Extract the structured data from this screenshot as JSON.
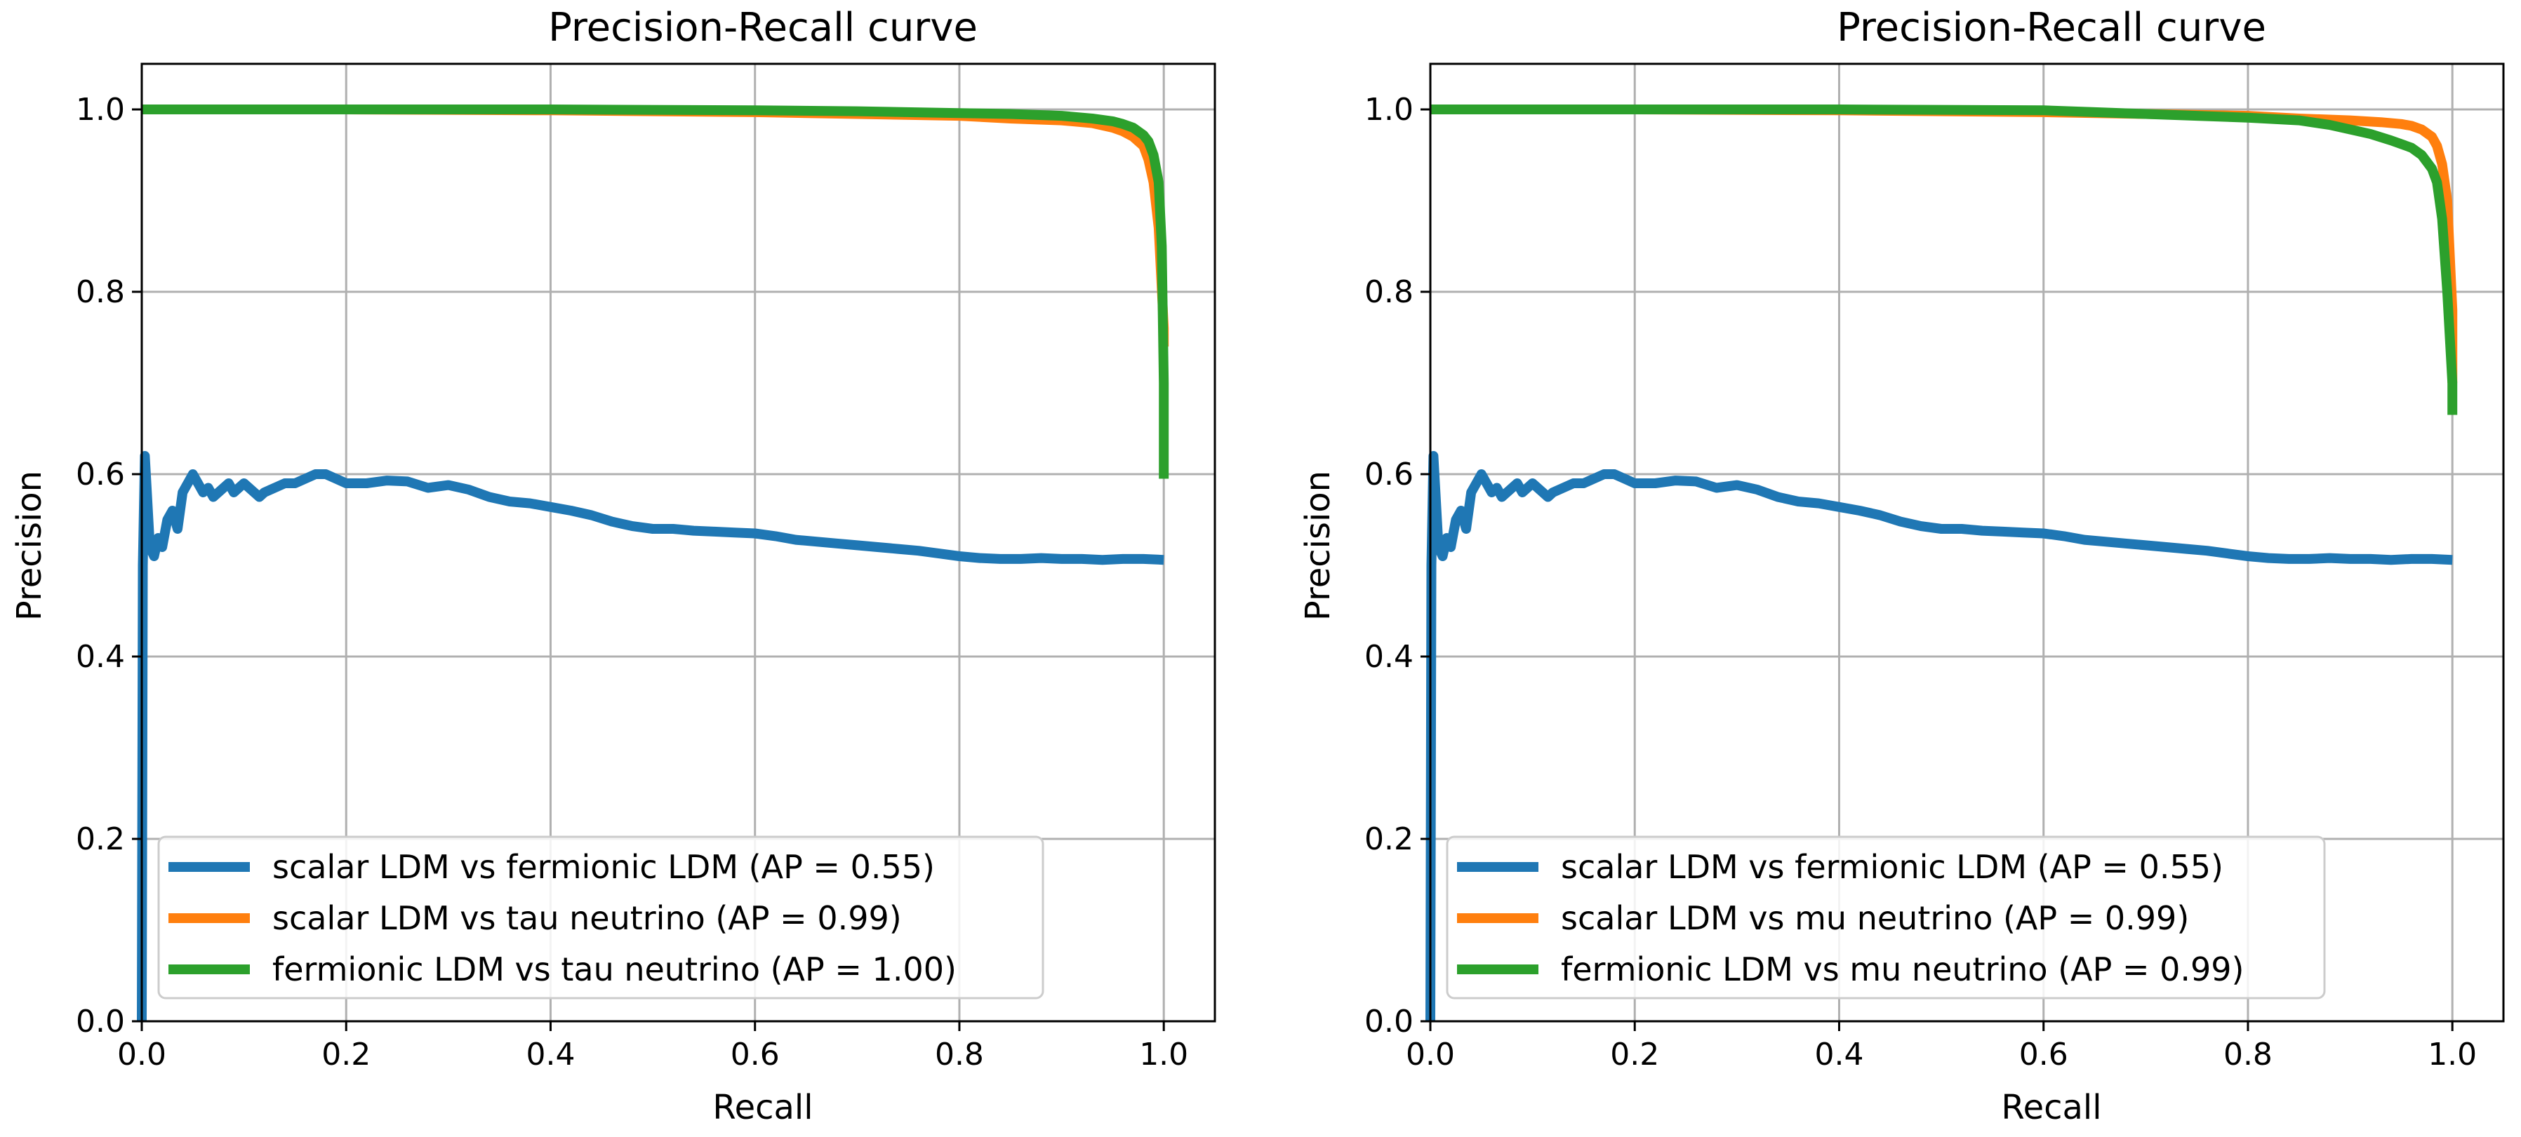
{
  "chart_data": [
    {
      "type": "line",
      "title": "Precision-Recall curve",
      "xlabel": "Recall",
      "ylabel": "Precision",
      "xlim": [
        0.0,
        1.05
      ],
      "ylim": [
        0.0,
        1.05
      ],
      "xticks": [
        "0.0",
        "0.2",
        "0.4",
        "0.6",
        "0.8",
        "1.0"
      ],
      "yticks": [
        "0.0",
        "0.2",
        "0.4",
        "0.6",
        "0.8",
        "1.0"
      ],
      "grid": true,
      "legend_position": "lower-left",
      "series": [
        {
          "name": "scalar LDM vs fermionic LDM (AP = 0.55)",
          "color": "#1f77b4",
          "x": [
            0.0,
            0.001,
            0.003,
            0.005,
            0.008,
            0.012,
            0.016,
            0.02,
            0.025,
            0.03,
            0.035,
            0.04,
            0.045,
            0.05,
            0.055,
            0.06,
            0.065,
            0.07,
            0.075,
            0.08,
            0.085,
            0.09,
            0.095,
            0.1,
            0.105,
            0.11,
            0.115,
            0.12,
            0.13,
            0.14,
            0.15,
            0.16,
            0.17,
            0.18,
            0.19,
            0.2,
            0.22,
            0.24,
            0.26,
            0.28,
            0.3,
            0.32,
            0.34,
            0.36,
            0.38,
            0.4,
            0.42,
            0.44,
            0.46,
            0.48,
            0.5,
            0.52,
            0.54,
            0.56,
            0.58,
            0.6,
            0.62,
            0.64,
            0.66,
            0.68,
            0.7,
            0.72,
            0.74,
            0.76,
            0.78,
            0.8,
            0.82,
            0.84,
            0.86,
            0.88,
            0.9,
            0.92,
            0.94,
            0.96,
            0.98,
            1.0
          ],
          "y": [
            0.0,
            0.5,
            0.62,
            0.58,
            0.52,
            0.51,
            0.53,
            0.52,
            0.55,
            0.56,
            0.54,
            0.58,
            0.59,
            0.6,
            0.59,
            0.58,
            0.585,
            0.575,
            0.58,
            0.585,
            0.59,
            0.58,
            0.585,
            0.59,
            0.585,
            0.58,
            0.575,
            0.58,
            0.585,
            0.59,
            0.59,
            0.595,
            0.6,
            0.6,
            0.595,
            0.59,
            0.59,
            0.593,
            0.592,
            0.585,
            0.588,
            0.583,
            0.575,
            0.57,
            0.568,
            0.564,
            0.56,
            0.555,
            0.548,
            0.543,
            0.54,
            0.54,
            0.538,
            0.537,
            0.536,
            0.535,
            0.532,
            0.528,
            0.526,
            0.524,
            0.522,
            0.52,
            0.518,
            0.516,
            0.513,
            0.51,
            0.508,
            0.507,
            0.507,
            0.508,
            0.507,
            0.507,
            0.506,
            0.507,
            0.507,
            0.506
          ]
        },
        {
          "name": "scalar LDM vs tau neutrino (AP = 0.99)",
          "color": "#ff7f0e",
          "x": [
            0.0,
            0.2,
            0.4,
            0.6,
            0.7,
            0.8,
            0.85,
            0.9,
            0.93,
            0.95,
            0.96,
            0.97,
            0.98,
            0.985,
            0.99,
            0.995,
            1.0,
            1.0
          ],
          "y": [
            1.0,
            1.0,
            0.999,
            0.997,
            0.995,
            0.993,
            0.99,
            0.988,
            0.985,
            0.98,
            0.976,
            0.97,
            0.96,
            0.945,
            0.92,
            0.87,
            0.76,
            0.74
          ]
        },
        {
          "name": "fermionic LDM vs tau neutrino (AP = 1.00)",
          "color": "#2ca02c",
          "x": [
            0.0,
            0.2,
            0.4,
            0.6,
            0.7,
            0.8,
            0.85,
            0.9,
            0.93,
            0.95,
            0.96,
            0.97,
            0.98,
            0.985,
            0.99,
            0.995,
            0.998,
            1.0,
            1.0
          ],
          "y": [
            1.0,
            1.0,
            1.0,
            0.999,
            0.998,
            0.996,
            0.995,
            0.993,
            0.99,
            0.987,
            0.984,
            0.98,
            0.972,
            0.965,
            0.95,
            0.92,
            0.85,
            0.7,
            0.595
          ]
        }
      ],
      "legend": [
        {
          "label": "scalar LDM vs fermionic LDM (AP = 0.55)",
          "color": "#1f77b4"
        },
        {
          "label": "scalar LDM vs tau neutrino (AP = 0.99)",
          "color": "#ff7f0e"
        },
        {
          "label": "fermionic LDM vs tau neutrino (AP = 1.00)",
          "color": "#2ca02c"
        }
      ]
    },
    {
      "type": "line",
      "title": "Precision-Recall curve",
      "xlabel": "Recall",
      "ylabel": "Precision",
      "xlim": [
        0.0,
        1.05
      ],
      "ylim": [
        0.0,
        1.05
      ],
      "xticks": [
        "0.0",
        "0.2",
        "0.4",
        "0.6",
        "0.8",
        "1.0"
      ],
      "yticks": [
        "0.0",
        "0.2",
        "0.4",
        "0.6",
        "0.8",
        "1.0"
      ],
      "grid": true,
      "legend_position": "lower-left",
      "series": [
        {
          "name": "scalar LDM vs fermionic LDM (AP = 0.55)",
          "color": "#1f77b4",
          "x": [
            0.0,
            0.001,
            0.003,
            0.005,
            0.008,
            0.012,
            0.016,
            0.02,
            0.025,
            0.03,
            0.035,
            0.04,
            0.045,
            0.05,
            0.055,
            0.06,
            0.065,
            0.07,
            0.075,
            0.08,
            0.085,
            0.09,
            0.095,
            0.1,
            0.105,
            0.11,
            0.115,
            0.12,
            0.13,
            0.14,
            0.15,
            0.16,
            0.17,
            0.18,
            0.19,
            0.2,
            0.22,
            0.24,
            0.26,
            0.28,
            0.3,
            0.32,
            0.34,
            0.36,
            0.38,
            0.4,
            0.42,
            0.44,
            0.46,
            0.48,
            0.5,
            0.52,
            0.54,
            0.56,
            0.58,
            0.6,
            0.62,
            0.64,
            0.66,
            0.68,
            0.7,
            0.72,
            0.74,
            0.76,
            0.78,
            0.8,
            0.82,
            0.84,
            0.86,
            0.88,
            0.9,
            0.92,
            0.94,
            0.96,
            0.98,
            1.0
          ],
          "y": [
            0.0,
            0.5,
            0.62,
            0.58,
            0.52,
            0.51,
            0.53,
            0.52,
            0.55,
            0.56,
            0.54,
            0.58,
            0.59,
            0.6,
            0.59,
            0.58,
            0.585,
            0.575,
            0.58,
            0.585,
            0.59,
            0.58,
            0.585,
            0.59,
            0.585,
            0.58,
            0.575,
            0.58,
            0.585,
            0.59,
            0.59,
            0.595,
            0.6,
            0.6,
            0.595,
            0.59,
            0.59,
            0.593,
            0.592,
            0.585,
            0.588,
            0.583,
            0.575,
            0.57,
            0.568,
            0.564,
            0.56,
            0.555,
            0.548,
            0.543,
            0.54,
            0.54,
            0.538,
            0.537,
            0.536,
            0.535,
            0.532,
            0.528,
            0.526,
            0.524,
            0.522,
            0.52,
            0.518,
            0.516,
            0.513,
            0.51,
            0.508,
            0.507,
            0.507,
            0.508,
            0.507,
            0.507,
            0.506,
            0.507,
            0.507,
            0.506
          ]
        },
        {
          "name": "scalar LDM vs mu neutrino (AP = 0.99)",
          "color": "#ff7f0e",
          "x": [
            0.0,
            0.2,
            0.4,
            0.6,
            0.7,
            0.8,
            0.85,
            0.9,
            0.93,
            0.95,
            0.96,
            0.97,
            0.98,
            0.985,
            0.99,
            0.995,
            1.0,
            1.0
          ],
          "y": [
            1.0,
            1.0,
            0.999,
            0.997,
            0.995,
            0.993,
            0.99,
            0.988,
            0.986,
            0.984,
            0.982,
            0.978,
            0.97,
            0.96,
            0.94,
            0.9,
            0.78,
            0.7
          ]
        },
        {
          "name": "fermionic LDM vs mu neutrino (AP = 0.99)",
          "color": "#2ca02c",
          "x": [
            0.0,
            0.2,
            0.4,
            0.6,
            0.65,
            0.7,
            0.75,
            0.8,
            0.85,
            0.88,
            0.9,
            0.92,
            0.94,
            0.96,
            0.97,
            0.98,
            0.985,
            0.99,
            0.995,
            1.0,
            1.0
          ],
          "y": [
            1.0,
            1.0,
            1.0,
            0.999,
            0.997,
            0.995,
            0.993,
            0.991,
            0.988,
            0.983,
            0.978,
            0.973,
            0.966,
            0.958,
            0.95,
            0.935,
            0.92,
            0.88,
            0.8,
            0.7,
            0.665
          ]
        }
      ],
      "legend": [
        {
          "label": "scalar LDM vs fermionic LDM (AP = 0.55)",
          "color": "#1f77b4"
        },
        {
          "label": "scalar LDM vs mu neutrino (AP = 0.99)",
          "color": "#ff7f0e"
        },
        {
          "label": "fermionic LDM vs mu neutrino (AP = 0.99)",
          "color": "#2ca02c"
        }
      ]
    }
  ]
}
